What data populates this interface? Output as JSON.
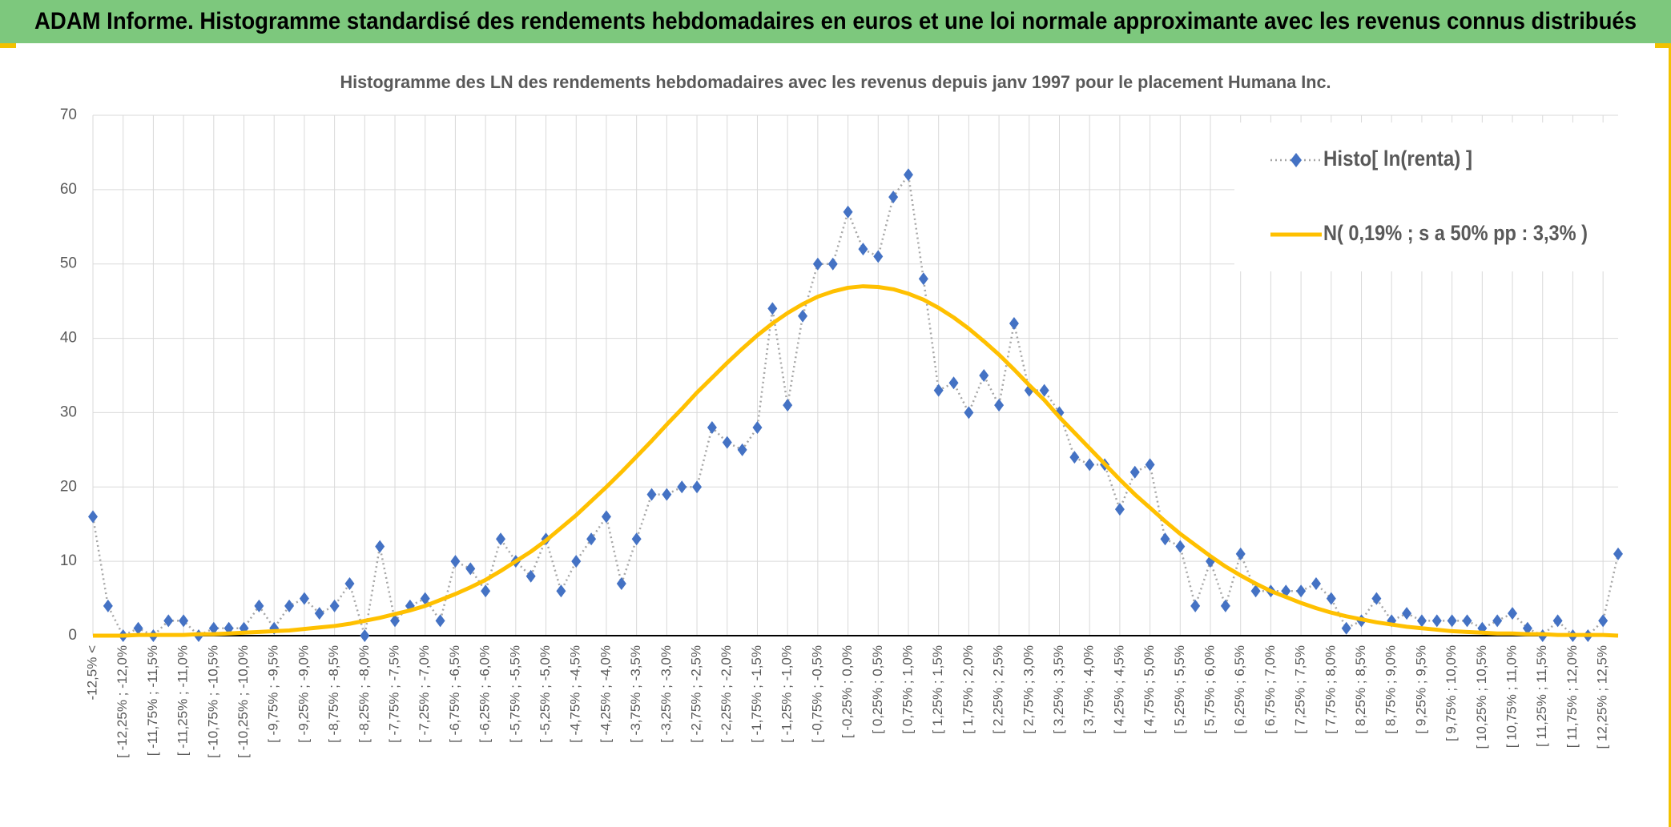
{
  "header": {
    "title": "ADAM Informe. Histogramme standardisé des rendements hebdomadaires en euros et une loi normale approximante avec les revenus connus distribués"
  },
  "chart_data": {
    "type": "line",
    "title": "Histogramme des LN des rendements hebdomadaires avec les revenus depuis janv 1997 pour le placement Humana Inc.",
    "categories": [
      "-12,5% <",
      null,
      "[ -12,25% ; -12,0%",
      null,
      "[ -11,75% ; -11,5%",
      null,
      "[ -11,25% ; -11,0%",
      null,
      "[ -10,75% ; -10,5%",
      null,
      "[ -10,25% ; -10,0%",
      null,
      "[ -9,75% ; -9,5%",
      null,
      "[ -9,25% ; -9,0%",
      null,
      "[ -8,75% ; -8,5%",
      null,
      "[ -8,25% ; -8,0%",
      null,
      "[ -7,75% ; -7,5%",
      null,
      "[ -7,25% ; -7,0%",
      null,
      "[ -6,75% ; -6,5%",
      null,
      "[ -6,25% ; -6,0%",
      null,
      "[ -5,75% ; -5,5%",
      null,
      "[ -5,25% ; -5,0%",
      null,
      "[ -4,75% ; -4,5%",
      null,
      "[ -4,25% ; -4,0%",
      null,
      "[ -3,75% ; -3,5%",
      null,
      "[ -3,25% ; -3,0%",
      null,
      "[ -2,75% ; -2,5%",
      null,
      "[ -2,25% ; -2,0%",
      null,
      "[ -1,75% ; -1,5%",
      null,
      "[ -1,25% ; -1,0%",
      null,
      "[ -0,75% ; -0,5%",
      null,
      "[ -0,25% ; 0,0%",
      null,
      "[ 0,25% ; 0,5%",
      null,
      "[ 0,75% ; 1,0%",
      null,
      "[ 1,25% ; 1,5%",
      null,
      "[ 1,75% ; 2,0%",
      null,
      "[ 2,25% ; 2,5%",
      null,
      "[ 2,75% ; 3,0%",
      null,
      "[ 3,25% ; 3,5%",
      null,
      "[ 3,75% ; 4,0%",
      null,
      "[ 4,25% ; 4,5%",
      null,
      "[ 4,75% ; 5,0%",
      null,
      "[ 5,25% ; 5,5%",
      null,
      "[ 5,75% ; 6,0%",
      null,
      "[ 6,25% ; 6,5%",
      null,
      "[ 6,75% ; 7,0%",
      null,
      "[ 7,25% ; 7,5%",
      null,
      "[ 7,75% ; 8,0%",
      null,
      "[ 8,25% ; 8,5%",
      null,
      "[ 8,75% ; 9,0%",
      null,
      "[ 9,25% ; 9,5%",
      null,
      "[ 9,75% ; 10,0%",
      null,
      "[ 10,25% ; 10,5%",
      null,
      "[ 10,75% ; 11,0%",
      null,
      "[ 11,25% ; 11,5%",
      null,
      "[ 11,75% ; 12,0%",
      null,
      "[ 12,25% ; 12,5%",
      null
    ],
    "series": [
      {
        "name": "Histo[ ln(renta) ]",
        "color": "#4472c4",
        "values": [
          16,
          4,
          0,
          1,
          0,
          2,
          2,
          0,
          1,
          1,
          1,
          4,
          1,
          4,
          5,
          3,
          4,
          7,
          0,
          12,
          2,
          4,
          5,
          2,
          10,
          9,
          6,
          13,
          10,
          8,
          13,
          6,
          10,
          13,
          16,
          7,
          13,
          19,
          19,
          20,
          20,
          28,
          26,
          25,
          28,
          44,
          31,
          43,
          50,
          50,
          57,
          52,
          51,
          59,
          62,
          48,
          33,
          34,
          30,
          35,
          31,
          42,
          33,
          33,
          30,
          24,
          23,
          23,
          17,
          22,
          23,
          13,
          12,
          4,
          10,
          4,
          11,
          6,
          6,
          6,
          6,
          7,
          5,
          1,
          2,
          5,
          2,
          3,
          2,
          2,
          2,
          2,
          1,
          2,
          3,
          1,
          0,
          2,
          0,
          0,
          2,
          11
        ]
      },
      {
        "name": "N( 0,19% ; s a 50% pp : 3,3% )",
        "color": "#ffc000",
        "values": [
          0.0,
          0.0,
          0.0,
          0.1,
          0.1,
          0.1,
          0.1,
          0.2,
          0.2,
          0.3,
          0.4,
          0.5,
          0.6,
          0.7,
          0.9,
          1.1,
          1.3,
          1.6,
          2.0,
          2.4,
          2.9,
          3.4,
          4.0,
          4.8,
          5.6,
          6.5,
          7.5,
          8.7,
          10.0,
          11.3,
          12.8,
          14.5,
          16.2,
          18.1,
          20.0,
          22.0,
          24.1,
          26.2,
          28.4,
          30.5,
          32.7,
          34.7,
          36.7,
          38.6,
          40.4,
          42.0,
          43.4,
          44.6,
          45.6,
          46.3,
          46.8,
          47.0,
          46.9,
          46.6,
          46.0,
          45.2,
          44.1,
          42.8,
          41.3,
          39.6,
          37.8,
          35.8,
          33.7,
          31.7,
          29.4,
          27.3,
          25.2,
          23.1,
          21.0,
          19.0,
          17.2,
          15.4,
          13.7,
          12.2,
          10.7,
          9.3,
          8.1,
          7.0,
          6.0,
          5.2,
          4.4,
          3.7,
          3.1,
          2.6,
          2.2,
          1.8,
          1.5,
          1.2,
          1.0,
          0.8,
          0.6,
          0.5,
          0.4,
          0.3,
          0.3,
          0.2,
          0.2,
          0.1,
          0.1,
          0.1,
          0.1,
          0.0
        ]
      }
    ],
    "ylim": [
      0,
      70
    ],
    "yticks": [
      0,
      10,
      20,
      30,
      40,
      50,
      60,
      70
    ],
    "grid": true,
    "legend": "top-right"
  }
}
